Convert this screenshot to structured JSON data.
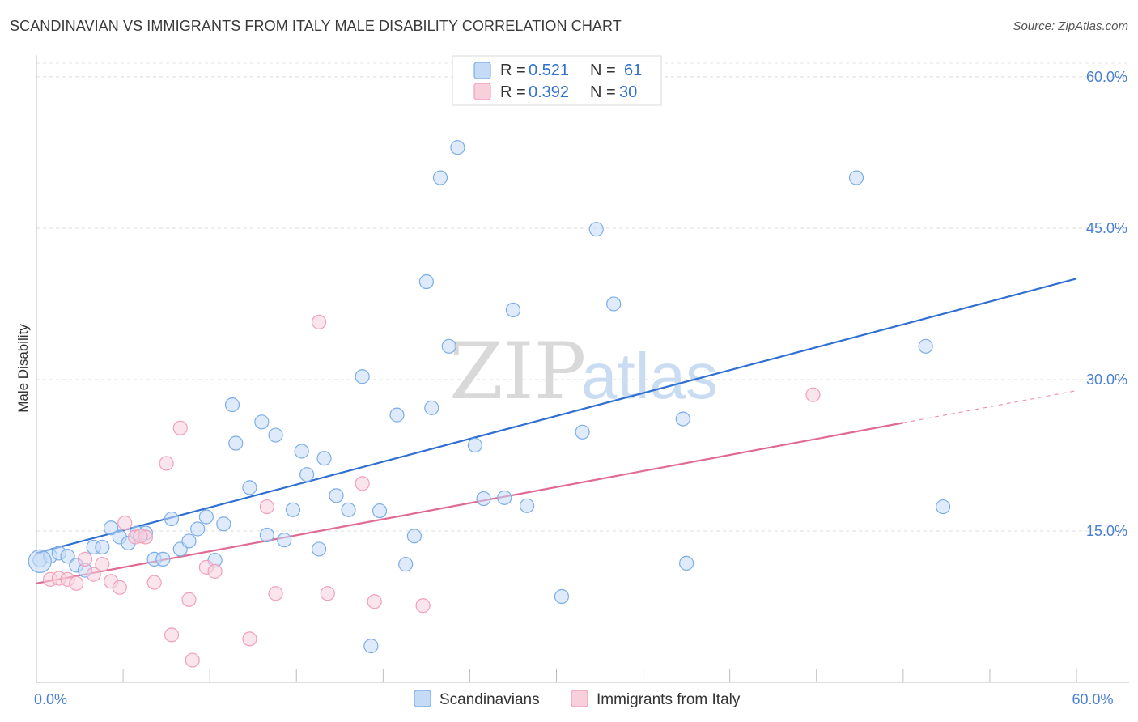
{
  "title": "SCANDINAVIAN VS IMMIGRANTS FROM ITALY MALE DISABILITY CORRELATION CHART",
  "source": "Source: ZipAtlas.com",
  "watermark": {
    "zip": "ZIP",
    "atlas": "atlas"
  },
  "chart_data": {
    "type": "scatter",
    "ylabel": "Male Disability",
    "xlabel": "",
    "xlim": [
      0,
      60
    ],
    "ylim": [
      0,
      62
    ],
    "x_ticks": [
      {
        "value": 0,
        "label": "0.0%"
      },
      {
        "value": 60,
        "label": "60.0%"
      }
    ],
    "y_ticks": [
      {
        "value": 15,
        "label": "15.0%"
      },
      {
        "value": 30,
        "label": "30.0%"
      },
      {
        "value": 45,
        "label": "45.0%"
      },
      {
        "value": 60,
        "label": "60.0%"
      }
    ],
    "legend": {
      "r_label": "R =",
      "n_label": "N =",
      "entries": [
        {
          "r": "0.521",
          "n": "61"
        },
        {
          "r": "0.392",
          "n": "30"
        }
      ]
    },
    "series": [
      {
        "name": "Scandinavians",
        "color": "#7baee8",
        "fill": "#c5dbf5",
        "line_color": "#2f6fd1",
        "trend": {
          "x0": 0,
          "y0": 12.8,
          "x1": 60,
          "y1": 40.0,
          "dash_from": null
        },
        "points": [
          [
            0.2,
            12.1
          ],
          [
            0.8,
            12.5
          ],
          [
            1.3,
            12.8
          ],
          [
            1.8,
            12.5
          ],
          [
            2.3,
            11.6
          ],
          [
            2.8,
            11.1
          ],
          [
            3.3,
            13.4
          ],
          [
            3.8,
            13.4
          ],
          [
            4.3,
            15.3
          ],
          [
            4.8,
            14.4
          ],
          [
            5.3,
            13.8
          ],
          [
            5.8,
            14.8
          ],
          [
            6.3,
            14.8
          ],
          [
            6.8,
            12.2
          ],
          [
            7.3,
            12.2
          ],
          [
            7.8,
            16.2
          ],
          [
            8.3,
            13.2
          ],
          [
            8.8,
            14.0
          ],
          [
            9.3,
            15.2
          ],
          [
            9.8,
            16.4
          ],
          [
            10.3,
            12.1
          ],
          [
            10.8,
            15.7
          ],
          [
            11.3,
            27.5
          ],
          [
            11.5,
            23.7
          ],
          [
            12.3,
            19.3
          ],
          [
            13.0,
            25.8
          ],
          [
            13.3,
            14.6
          ],
          [
            13.8,
            24.5
          ],
          [
            14.3,
            14.1
          ],
          [
            14.8,
            17.1
          ],
          [
            15.3,
            22.9
          ],
          [
            15.6,
            20.6
          ],
          [
            16.3,
            13.2
          ],
          [
            16.6,
            22.2
          ],
          [
            17.3,
            18.5
          ],
          [
            18.0,
            17.1
          ],
          [
            18.8,
            30.3
          ],
          [
            19.3,
            3.6
          ],
          [
            19.8,
            17.0
          ],
          [
            20.8,
            26.5
          ],
          [
            21.3,
            11.7
          ],
          [
            21.8,
            14.5
          ],
          [
            22.5,
            39.7
          ],
          [
            22.8,
            27.2
          ],
          [
            23.3,
            50.0
          ],
          [
            23.8,
            33.3
          ],
          [
            24.3,
            53.0
          ],
          [
            25.3,
            23.5
          ],
          [
            25.8,
            18.2
          ],
          [
            27.0,
            18.3
          ],
          [
            27.5,
            36.9
          ],
          [
            28.3,
            17.5
          ],
          [
            30.3,
            8.5
          ],
          [
            31.5,
            24.8
          ],
          [
            32.3,
            44.9
          ],
          [
            33.3,
            37.5
          ],
          [
            37.3,
            26.1
          ],
          [
            37.5,
            11.8
          ],
          [
            47.3,
            50.0
          ],
          [
            51.3,
            33.3
          ],
          [
            52.3,
            17.4
          ]
        ]
      },
      {
        "name": "Immigrants from Italy",
        "color": "#f0a0b8",
        "fill": "#f8d0dc",
        "line_color": "#e06a93",
        "trend": {
          "x0": 0,
          "y0": 9.8,
          "x1": 60,
          "y1": 28.9,
          "dash_from": 50.0
        },
        "points": [
          [
            0.8,
            10.2
          ],
          [
            1.3,
            10.3
          ],
          [
            1.8,
            10.2
          ],
          [
            2.3,
            9.8
          ],
          [
            2.8,
            12.2
          ],
          [
            3.3,
            10.7
          ],
          [
            3.8,
            11.7
          ],
          [
            4.3,
            10.0
          ],
          [
            4.8,
            9.4
          ],
          [
            5.1,
            15.8
          ],
          [
            5.7,
            14.4
          ],
          [
            6.3,
            14.4
          ],
          [
            6.8,
            9.9
          ],
          [
            7.5,
            21.7
          ],
          [
            7.8,
            4.7
          ],
          [
            8.3,
            25.2
          ],
          [
            8.8,
            8.2
          ],
          [
            9.0,
            2.2
          ],
          [
            9.8,
            11.4
          ],
          [
            10.3,
            11.0
          ],
          [
            12.3,
            4.3
          ],
          [
            13.3,
            17.4
          ],
          [
            13.8,
            8.8
          ],
          [
            16.3,
            35.7
          ],
          [
            16.8,
            8.8
          ],
          [
            18.8,
            19.7
          ],
          [
            19.5,
            8.0
          ],
          [
            22.3,
            7.6
          ],
          [
            44.8,
            28.5
          ],
          [
            6.0,
            14.5
          ]
        ]
      }
    ]
  }
}
